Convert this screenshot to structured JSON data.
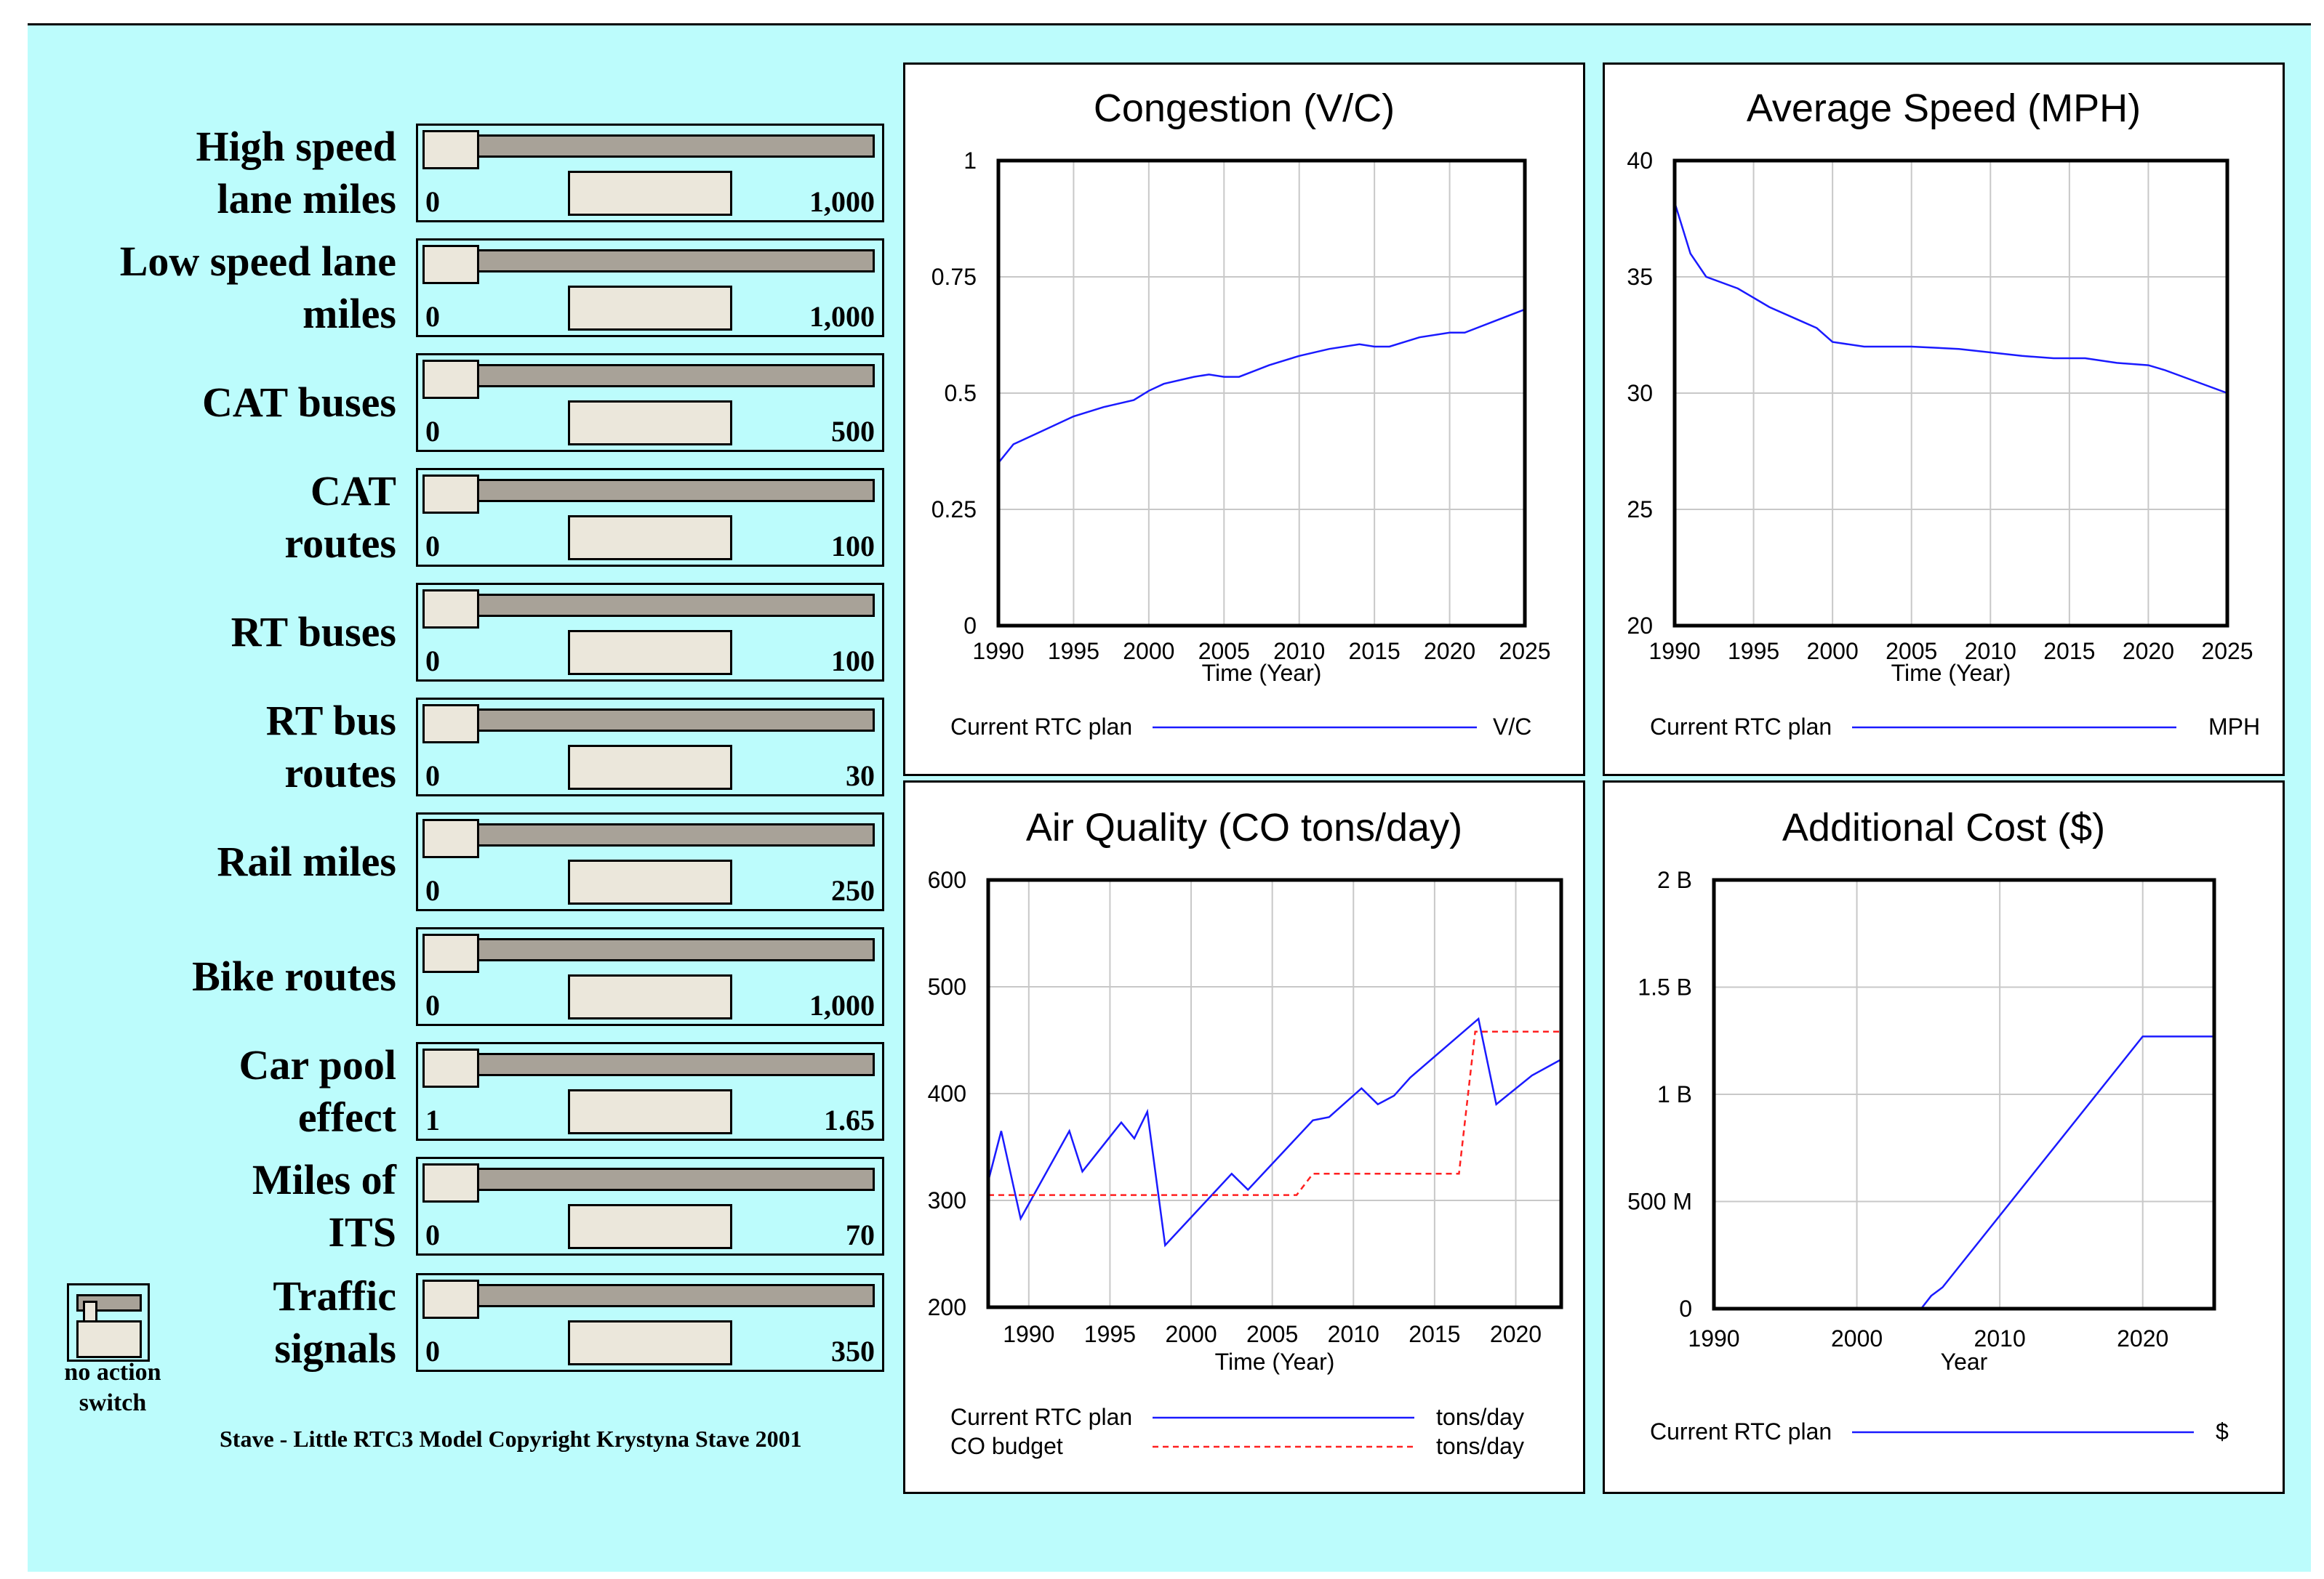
{
  "controls": [
    {
      "label": "High speed\nlane miles",
      "min": "0",
      "max": "1,000"
    },
    {
      "label": "Low speed lane\nmiles",
      "min": "0",
      "max": "1,000"
    },
    {
      "label": "CAT buses",
      "min": "0",
      "max": "500"
    },
    {
      "label": "CAT\nroutes",
      "min": "0",
      "max": "100"
    },
    {
      "label": "RT buses",
      "min": "0",
      "max": "100"
    },
    {
      "label": "RT bus\nroutes",
      "min": "0",
      "max": "30"
    },
    {
      "label": "Rail miles",
      "min": "0",
      "max": "250"
    },
    {
      "label": "Bike routes",
      "min": "0",
      "max": "1,000"
    },
    {
      "label": "Car pool\neffect",
      "min": "1",
      "max": "1.65"
    },
    {
      "label": "Miles of\nITS",
      "min": "0",
      "max": "70"
    },
    {
      "label": "Traffic\nsignals",
      "min": "0",
      "max": "350"
    }
  ],
  "switch": {
    "label": "no action\nswitch"
  },
  "copyright": "Stave - Little RTC3 Model  Copyright Krystyna Stave 2001",
  "colors": {
    "background": "#bcfcfc",
    "series_blue": "#1a1aff",
    "series_red": "#ff2020",
    "grid": "#c8c8c8"
  },
  "chart_data": [
    {
      "type": "line",
      "title": "Congestion (V/C)",
      "xlabel": "Time (Year)",
      "ylabel": "",
      "xlim": [
        1990,
        2025
      ],
      "ylim": [
        0,
        1
      ],
      "xticks": [
        1990,
        1995,
        2000,
        2005,
        2010,
        2015,
        2020,
        2025
      ],
      "xtick_labels": [
        "1990",
        "1995",
        "2000",
        "2005",
        "2010",
        "2015",
        "2020",
        "2025"
      ],
      "yticks": [
        0,
        0.25,
        0.5,
        0.75,
        1
      ],
      "ytick_labels": [
        "0",
        "0.25",
        "0.5",
        "0.75",
        "1"
      ],
      "series": [
        {
          "name": "Current RTC plan",
          "unit": "V/C",
          "style": "solid",
          "color": "#1a1aff",
          "x": [
            1990,
            1991,
            1993,
            1995,
            1997,
            1999,
            2000,
            2001,
            2003,
            2004,
            2005,
            2006,
            2008,
            2010,
            2012,
            2014,
            2015,
            2016,
            2018,
            2020,
            2021,
            2023,
            2025
          ],
          "y": [
            0.35,
            0.39,
            0.42,
            0.45,
            0.47,
            0.485,
            0.505,
            0.52,
            0.535,
            0.54,
            0.535,
            0.535,
            0.56,
            0.58,
            0.595,
            0.605,
            0.6,
            0.6,
            0.62,
            0.63,
            0.63,
            0.655,
            0.68
          ]
        }
      ]
    },
    {
      "type": "line",
      "title": "Average Speed (MPH)",
      "xlabel": "Time (Year)",
      "ylabel": "",
      "xlim": [
        1990,
        2025
      ],
      "ylim": [
        20,
        40
      ],
      "xticks": [
        1990,
        1995,
        2000,
        2005,
        2010,
        2015,
        2020,
        2025
      ],
      "xtick_labels": [
        "1990",
        "1995",
        "2000",
        "2005",
        "2010",
        "2015",
        "2020",
        "2025"
      ],
      "yticks": [
        20,
        25,
        30,
        35,
        40
      ],
      "ytick_labels": [
        "20",
        "25",
        "30",
        "35",
        "40"
      ],
      "series": [
        {
          "name": "Current RTC plan",
          "unit": "MPH",
          "style": "solid",
          "color": "#1a1aff",
          "x": [
            1990,
            1991,
            1992,
            1994,
            1996,
            1998,
            1999,
            2000,
            2002,
            2005,
            2008,
            2012,
            2014,
            2016,
            2018,
            2020,
            2021,
            2023,
            2025
          ],
          "y": [
            38.2,
            36,
            35,
            34.5,
            33.7,
            33.1,
            32.8,
            32.2,
            32,
            32,
            31.9,
            31.6,
            31.5,
            31.5,
            31.3,
            31.2,
            31.0,
            30.5,
            30
          ]
        }
      ]
    },
    {
      "type": "line",
      "title": "Air Quality (CO tons/day)",
      "xlabel": "Time (Year)",
      "ylabel": "",
      "xlim": [
        1987.5,
        2022.8
      ],
      "ylim": [
        200,
        600
      ],
      "xticks": [
        1990,
        1995,
        2000,
        2005,
        2010,
        2015,
        2020
      ],
      "xtick_labels": [
        "1990",
        "1995",
        "2000",
        "2005",
        "2010",
        "2015",
        "2020"
      ],
      "yticks": [
        200,
        300,
        400,
        500,
        600
      ],
      "ytick_labels": [
        "200",
        "300",
        "400",
        "500",
        "600"
      ],
      "series": [
        {
          "name": "Current RTC plan",
          "unit": "tons/day",
          "style": "solid",
          "color": "#1a1aff",
          "x": [
            1987.5,
            1988.3,
            1989.5,
            1992.5,
            1993.3,
            1995.7,
            1996.5,
            1997.3,
            1998.4,
            2002.5,
            2003.5,
            2007.5,
            2008.5,
            2010.5,
            2011.5,
            2012.5,
            2013.5,
            2017.7,
            2018.8,
            2021,
            2022.8
          ],
          "y": [
            318,
            365,
            283,
            365,
            327,
            373,
            358,
            383,
            258,
            325,
            310,
            375,
            378,
            405,
            390,
            398,
            415,
            470,
            390,
            417,
            432
          ]
        },
        {
          "name": "CO budget",
          "unit": "tons/day",
          "style": "dashed",
          "color": "#ff2020",
          "x": [
            1987.5,
            2006.5,
            2007.5,
            2016.5,
            2017.5,
            2022.8
          ],
          "y": [
            305,
            305,
            325,
            325,
            458,
            458
          ]
        }
      ]
    },
    {
      "type": "line",
      "title": "Additional Cost ($)",
      "xlabel": "Year",
      "ylabel": "",
      "xlim": [
        1990,
        2025
      ],
      "ylim": [
        0,
        2000000000
      ],
      "xticks": [
        1990,
        2000,
        2010,
        2020
      ],
      "xtick_labels": [
        "1990",
        "2000",
        "2010",
        "2020"
      ],
      "yticks": [
        0,
        500000000,
        1000000000,
        1500000000,
        2000000000
      ],
      "ytick_labels": [
        "0",
        "500 M",
        "1 B",
        "1.5 B",
        "2 B"
      ],
      "series": [
        {
          "name": "Current RTC plan",
          "unit": "$",
          "style": "solid",
          "color": "#1a1aff",
          "x": [
            1990,
            2004.5,
            2005.2,
            2006,
            2020,
            2025
          ],
          "y": [
            0,
            0,
            60000000,
            100000000,
            1270000000,
            1270000000
          ]
        }
      ]
    }
  ]
}
